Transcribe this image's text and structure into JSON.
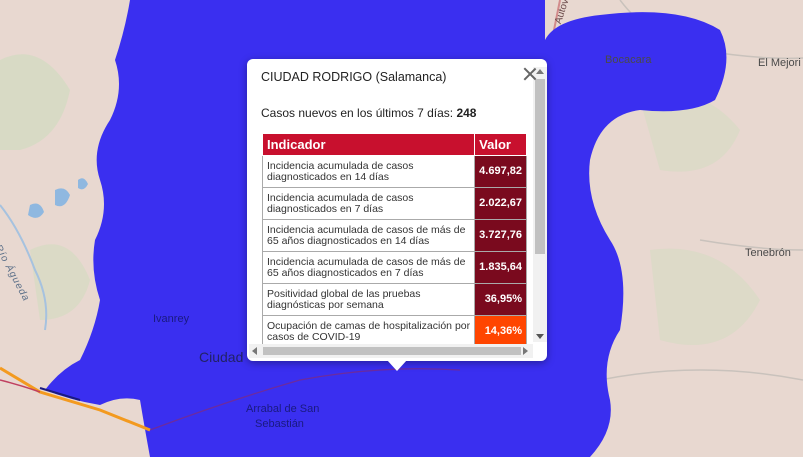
{
  "map": {
    "labels": {
      "bocacara": "Bocacara",
      "el_mejorito": "El Mejori",
      "tenebron": "Tenebrón",
      "ivanrey": "Ivanrey",
      "ciudad": "Ciudad",
      "arrabal_line1": "Arrabal de San",
      "arrabal_line2": "Sebastián",
      "rio_agueda": "Río Águeda",
      "autovia": "Autovía"
    },
    "colors": {
      "background": "#e8d8d0",
      "region": "#3a2ff0",
      "road_orange": "#f39a1f",
      "road_red": "#c04060",
      "water": "#8fb8e0",
      "green": "#c9d8b4"
    }
  },
  "popup": {
    "title": "CIUDAD RODRIGO (Salamanca)",
    "cases_label": "Casos nuevos en los últimos 7 días:",
    "cases_value": "248",
    "table": {
      "header_indicator": "Indicador",
      "header_value": "Valor",
      "rows": [
        {
          "label": "Incidencia acumulada de casos diagnosticados en 14 días",
          "value": "4.697,82",
          "color": "#7a0a1e"
        },
        {
          "label": "Incidencia acumulada de casos diagnosticados en 7 días",
          "value": "2.022,67",
          "color": "#7a0a1e"
        },
        {
          "label": "Incidencia acumulada de casos de más de 65 años diagnosticados en 14 días",
          "value": "3.727,76",
          "color": "#7a0a1e"
        },
        {
          "label": "Incidencia acumulada de casos de más de 65 años diagnosticados en 7 días",
          "value": "1.835,64",
          "color": "#7a0a1e"
        },
        {
          "label": "Positividad global de las pruebas diagnósticas por semana",
          "value": "36,95%",
          "color": "#7a0a1e"
        },
        {
          "label": "Ocupación de camas de hospitalización por casos de COVID-19",
          "value": "14,36%",
          "color": "#ff4500"
        }
      ]
    }
  }
}
